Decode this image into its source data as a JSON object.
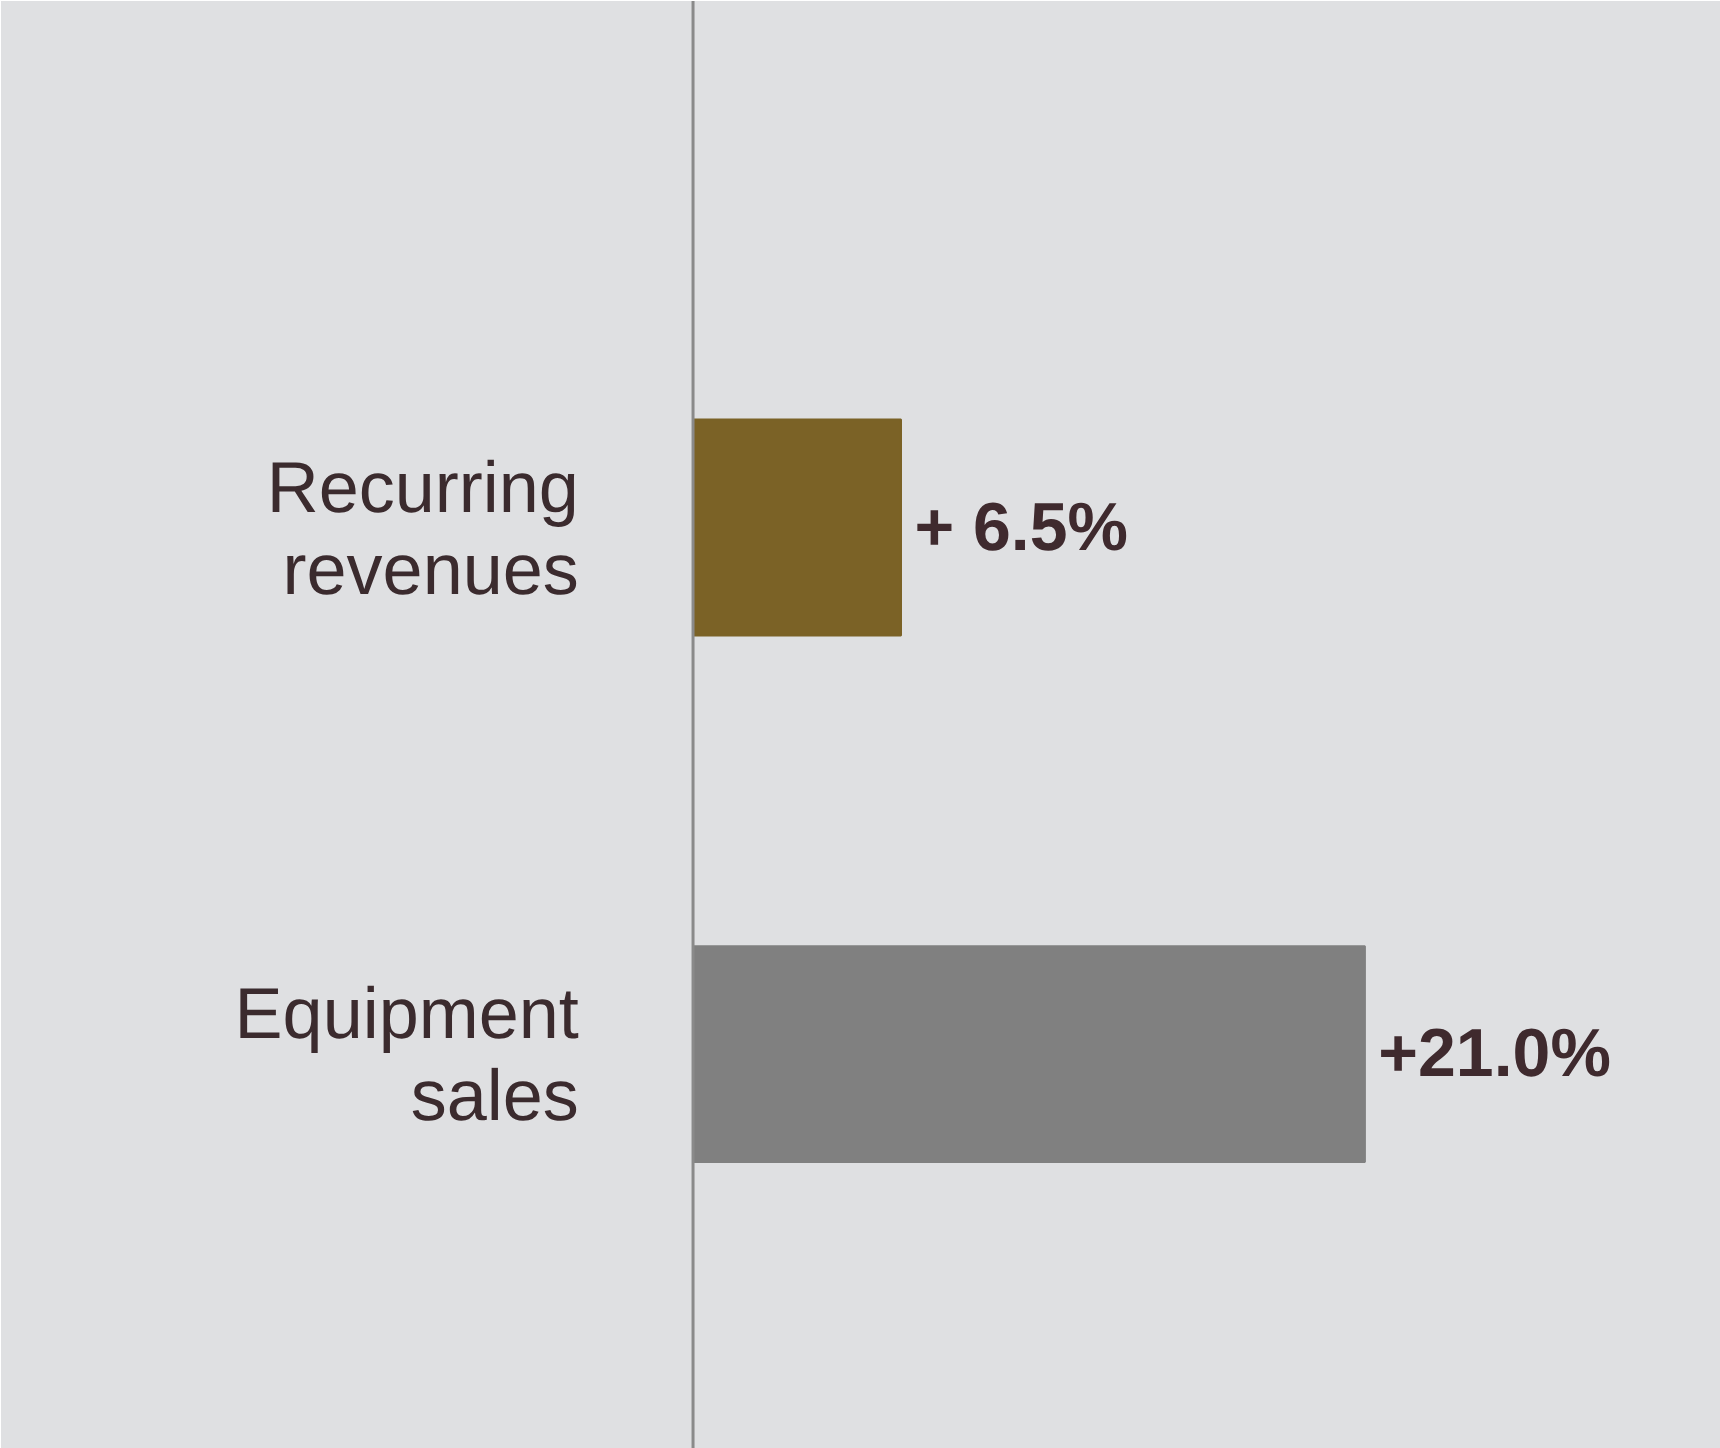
{
  "chart_data": {
    "type": "bar",
    "orientation": "horizontal",
    "categories": [
      "Recurring revenues",
      "Equipment sales"
    ],
    "values": [
      6.5,
      21.0
    ],
    "colors": [
      "#7b6226",
      "#808080"
    ],
    "value_labels": [
      "+ 6.5%",
      "+21.0%"
    ]
  }
}
